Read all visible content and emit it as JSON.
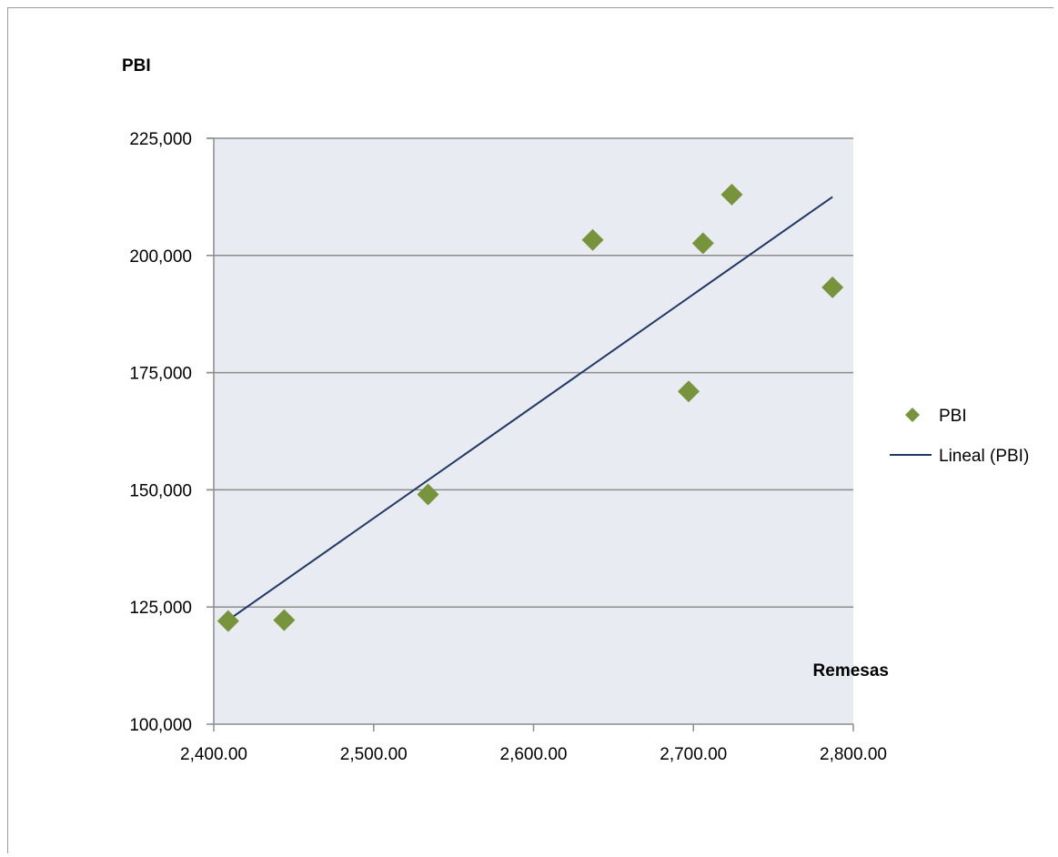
{
  "chart_data": {
    "type": "scatter",
    "title": "",
    "xlabel": "Remesas",
    "ylabel": "PBI",
    "xlim": [
      2400,
      2800
    ],
    "ylim": [
      100000,
      225000
    ],
    "x_ticks": [
      2400,
      2500,
      2600,
      2700,
      2800
    ],
    "x_tick_labels": [
      "2,400.00",
      "2,500.00",
      "2,600.00",
      "2,700.00",
      "2,800.00"
    ],
    "y_ticks": [
      100000,
      125000,
      150000,
      175000,
      200000,
      225000
    ],
    "y_tick_labels": [
      "100,000",
      "125,000",
      "150,000",
      "175,000",
      "200,000",
      "225,000"
    ],
    "grid": "horizontal",
    "legend_position": "right",
    "colors": {
      "marker": "#77933C",
      "trendline": "#1F3864",
      "plot_bg": "#E8ECF2",
      "grid": "#8C8C8C"
    },
    "series": [
      {
        "name": "PBI",
        "marker": "diamond",
        "points": [
          {
            "x": 2409,
            "y": 122000
          },
          {
            "x": 2444,
            "y": 122200
          },
          {
            "x": 2534,
            "y": 149000
          },
          {
            "x": 2637,
            "y": 203300
          },
          {
            "x": 2697,
            "y": 171000
          },
          {
            "x": 2706,
            "y": 202600
          },
          {
            "x": 2724,
            "y": 213000
          },
          {
            "x": 2787,
            "y": 193200
          }
        ]
      }
    ],
    "trendline": {
      "name": "Lineal (PBI)",
      "type": "linear",
      "x_start": 2409,
      "x_end": 2787,
      "y_start": 122200,
      "y_end": 212500
    }
  }
}
